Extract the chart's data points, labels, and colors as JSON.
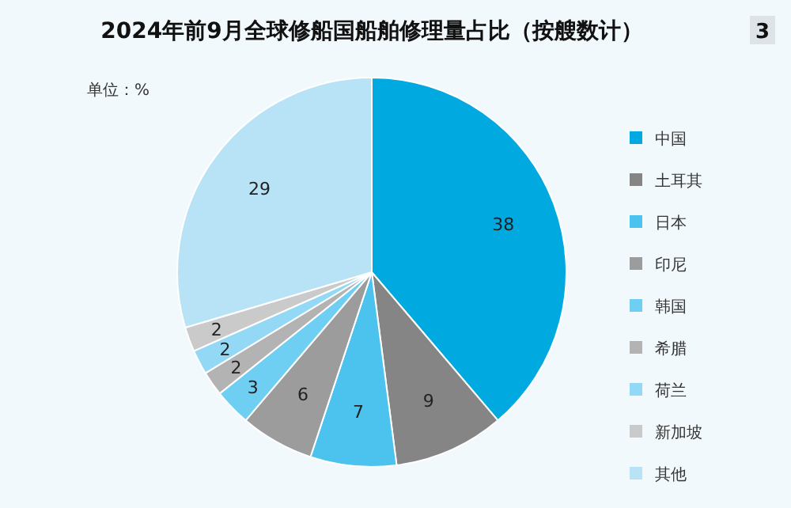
{
  "chart_data": {
    "type": "pie",
    "title": "2024年前9月全球修船国船舶修理量占比（按艘数计）",
    "annotations": [
      "单位：%",
      "3"
    ],
    "categories": [
      "中国",
      "土耳其",
      "日本",
      "印尼",
      "韩国",
      "希腊",
      "荷兰",
      "新加坡",
      "其他"
    ],
    "values": [
      38,
      9,
      7,
      6,
      3,
      2,
      2,
      2,
      29
    ],
    "colors": [
      "#00a9e0",
      "#858585",
      "#4cc2ef",
      "#9c9c9c",
      "#6fcff3",
      "#b3b3b3",
      "#93d9f5",
      "#cacaca",
      "#b8e3f6"
    ],
    "data_labels": true,
    "legend": "right"
  }
}
